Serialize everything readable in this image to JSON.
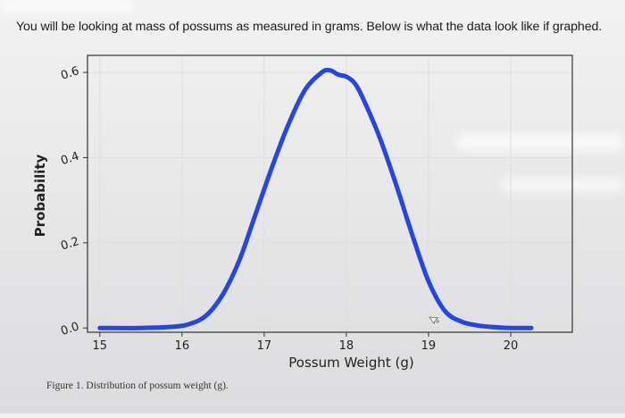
{
  "instructions_text": "You will be looking at mass of possums as measured in grams. Below is what the data look like if graphed.",
  "caption": "Figure 1. Distribution of possum weight (g).",
  "colors": {
    "line": "#2347e0",
    "grid": "#dedede",
    "frame": "#333333"
  },
  "chart_data": {
    "type": "line",
    "title": "",
    "xlabel": "Possum Weight (g)",
    "ylabel": "Probability",
    "xlim": [
      14.85,
      20.75
    ],
    "ylim": [
      -0.01,
      0.64
    ],
    "xticks": [
      15,
      16,
      17,
      18,
      19,
      20
    ],
    "yticks": [
      0.0,
      0.2,
      0.4,
      0.6
    ],
    "ytick_labels": [
      "0.0",
      "0.2",
      "0.4",
      "0.6"
    ],
    "grid": true,
    "x": [
      15.0,
      15.5,
      15.9,
      16.1,
      16.3,
      16.5,
      16.7,
      16.9,
      17.1,
      17.3,
      17.5,
      17.7,
      17.8,
      17.9,
      18.0,
      18.1,
      18.2,
      18.4,
      18.6,
      18.8,
      19.0,
      19.2,
      19.4,
      19.6,
      19.8,
      20.0,
      20.25
    ],
    "y": [
      0.0,
      0.0,
      0.003,
      0.01,
      0.03,
      0.08,
      0.16,
      0.27,
      0.38,
      0.48,
      0.56,
      0.6,
      0.605,
      0.595,
      0.59,
      0.575,
      0.54,
      0.45,
      0.34,
      0.22,
      0.11,
      0.04,
      0.015,
      0.006,
      0.002,
      0.0,
      0.0
    ]
  }
}
